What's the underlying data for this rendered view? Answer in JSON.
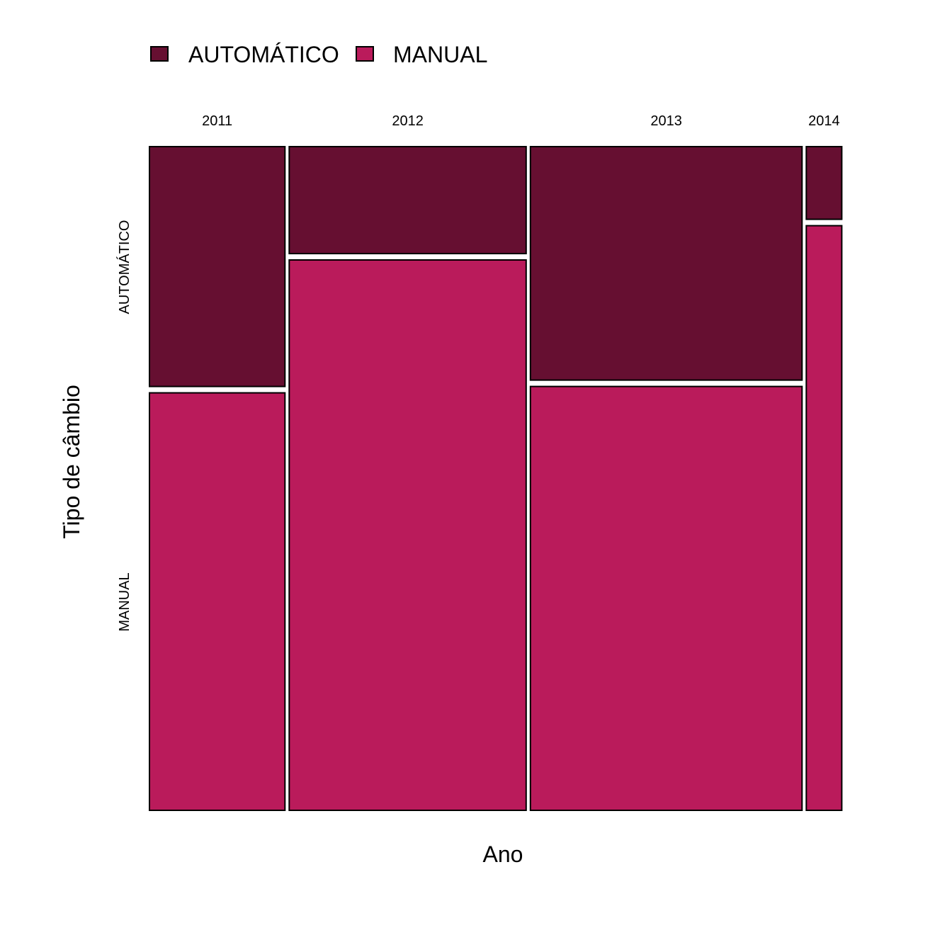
{
  "chart_data": {
    "type": "mosaic",
    "xlabel": "Ano",
    "ylabel": "Tipo de câmbio",
    "categories": [
      "2011",
      "2012",
      "2013",
      "2014"
    ],
    "column_share": [
      0.1954,
      0.3417,
      0.3917,
      0.0512
    ],
    "series": [
      {
        "name": "AUTOMÁTICO",
        "color": "#660F31",
        "share": [
          0.3649,
          0.1627,
          0.3552,
          0.1106
        ]
      },
      {
        "name": "MANUAL",
        "color": "#BA1B5B",
        "share": [
          0.6351,
          0.8373,
          0.6448,
          0.8894
        ]
      }
    ],
    "row_labels": [
      "AUTOMÁTICO",
      "MANUAL"
    ],
    "legend_position": "top-left"
  }
}
